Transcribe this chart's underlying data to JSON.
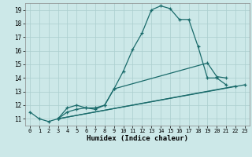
{
  "title": "",
  "xlabel": "Humidex (Indice chaleur)",
  "bg_color": "#cce8e8",
  "grid_color": "#aacece",
  "line_color": "#1a6b6b",
  "xlim": [
    -0.5,
    23.5
  ],
  "ylim": [
    10.5,
    19.5
  ],
  "xticks": [
    0,
    1,
    2,
    3,
    4,
    5,
    6,
    7,
    8,
    9,
    10,
    11,
    12,
    13,
    14,
    15,
    16,
    17,
    18,
    19,
    20,
    21,
    22,
    23
  ],
  "yticks": [
    11,
    12,
    13,
    14,
    15,
    16,
    17,
    18,
    19
  ],
  "line1_x": [
    0,
    1,
    2,
    3,
    4,
    5,
    6,
    7,
    8,
    9,
    10,
    11,
    12,
    13,
    14,
    15,
    16,
    17,
    18,
    19,
    20,
    21
  ],
  "line1_y": [
    11.5,
    11.0,
    10.8,
    11.0,
    11.8,
    12.0,
    11.8,
    11.7,
    12.0,
    13.2,
    14.5,
    16.1,
    17.3,
    19.0,
    19.3,
    19.1,
    18.3,
    18.3,
    16.3,
    14.0,
    14.0,
    13.5
  ],
  "line2_x": [
    3,
    4,
    5,
    6,
    7,
    8,
    9,
    19,
    20,
    21
  ],
  "line2_y": [
    11.0,
    11.5,
    11.7,
    11.8,
    11.8,
    12.0,
    13.2,
    15.1,
    14.1,
    14.0
  ],
  "line3_x": [
    3,
    22
  ],
  "line3_y": [
    11.0,
    13.4
  ],
  "line4_x": [
    3,
    23
  ],
  "line4_y": [
    11.0,
    13.5
  ]
}
